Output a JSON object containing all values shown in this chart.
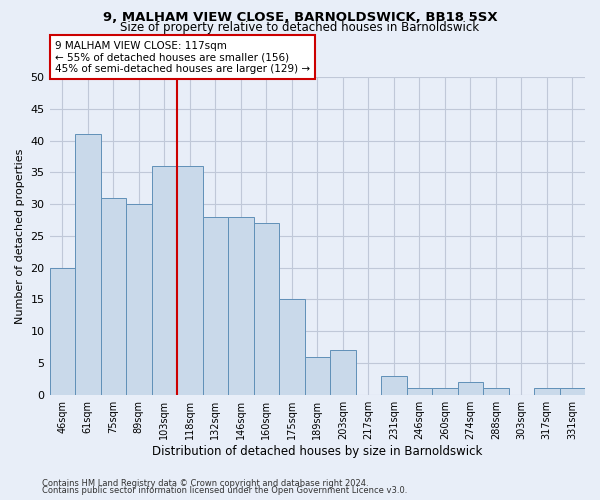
{
  "title1": "9, MALHAM VIEW CLOSE, BARNOLDSWICK, BB18 5SX",
  "title2": "Size of property relative to detached houses in Barnoldswick",
  "xlabel": "Distribution of detached houses by size in Barnoldswick",
  "ylabel": "Number of detached properties",
  "categories": [
    "46sqm",
    "61sqm",
    "75sqm",
    "89sqm",
    "103sqm",
    "118sqm",
    "132sqm",
    "146sqm",
    "160sqm",
    "175sqm",
    "189sqm",
    "203sqm",
    "217sqm",
    "231sqm",
    "246sqm",
    "260sqm",
    "274sqm",
    "288sqm",
    "303sqm",
    "317sqm",
    "331sqm"
  ],
  "values": [
    20,
    41,
    31,
    30,
    36,
    36,
    28,
    28,
    27,
    15,
    6,
    7,
    0,
    3,
    1,
    1,
    2,
    1,
    0,
    1,
    1
  ],
  "bar_color": "#c9d9ea",
  "bar_edge_color": "#6090b8",
  "vline_index": 5,
  "vline_color": "#cc0000",
  "annotation_text": "9 MALHAM VIEW CLOSE: 117sqm\n← 55% of detached houses are smaller (156)\n45% of semi-detached houses are larger (129) →",
  "annotation_box_color": "#ffffff",
  "annotation_border_color": "#cc0000",
  "ylim": [
    0,
    50
  ],
  "yticks": [
    0,
    5,
    10,
    15,
    20,
    25,
    30,
    35,
    40,
    45,
    50
  ],
  "grid_color": "#c0c8d8",
  "background_color": "#e8eef8",
  "footnote1": "Contains HM Land Registry data © Crown copyright and database right 2024.",
  "footnote2": "Contains public sector information licensed under the Open Government Licence v3.0."
}
